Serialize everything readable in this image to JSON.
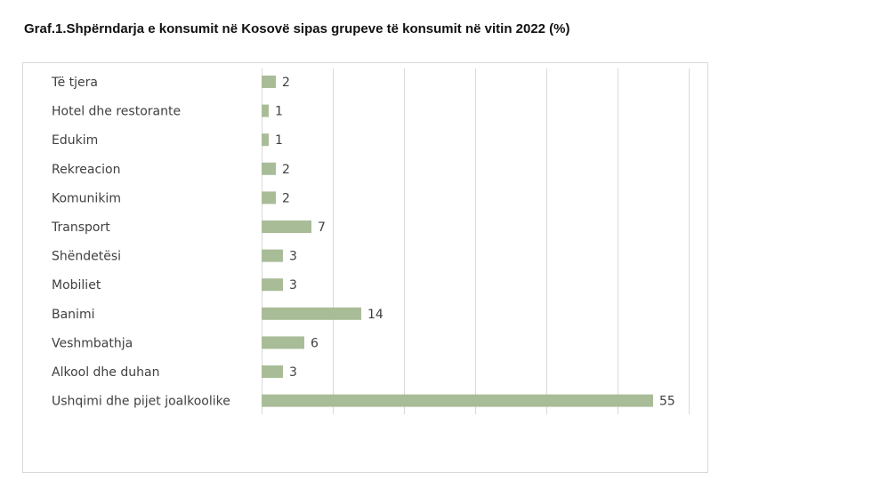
{
  "chart_data": {
    "type": "bar",
    "orientation": "horizontal",
    "title": "Graf.1.Shpërndarja e konsumit në Kosovë sipas grupeve të konsumit në vitin 2022 (%)",
    "categories": [
      "Të tjera",
      "Hotel dhe restorante",
      "Edukim",
      "Rekreacion",
      "Komunikim",
      "Transport",
      "Shëndetësi",
      "Mobiliet",
      "Banimi",
      "Veshmbathja",
      "Alkool dhe duhan",
      "Ushqimi dhe pijet joalkoolike"
    ],
    "values": [
      2,
      1,
      1,
      2,
      2,
      7,
      3,
      3,
      14,
      6,
      3,
      55
    ],
    "value_labels": [
      "2",
      "1",
      "1",
      "2",
      "2",
      "7",
      "3",
      "3",
      "14",
      "6",
      "3",
      "55"
    ],
    "xlim": [
      0,
      60
    ],
    "grid": true,
    "legend": "none",
    "bar_color": "#a9bc98",
    "grid_color": "#d9d9d9"
  }
}
